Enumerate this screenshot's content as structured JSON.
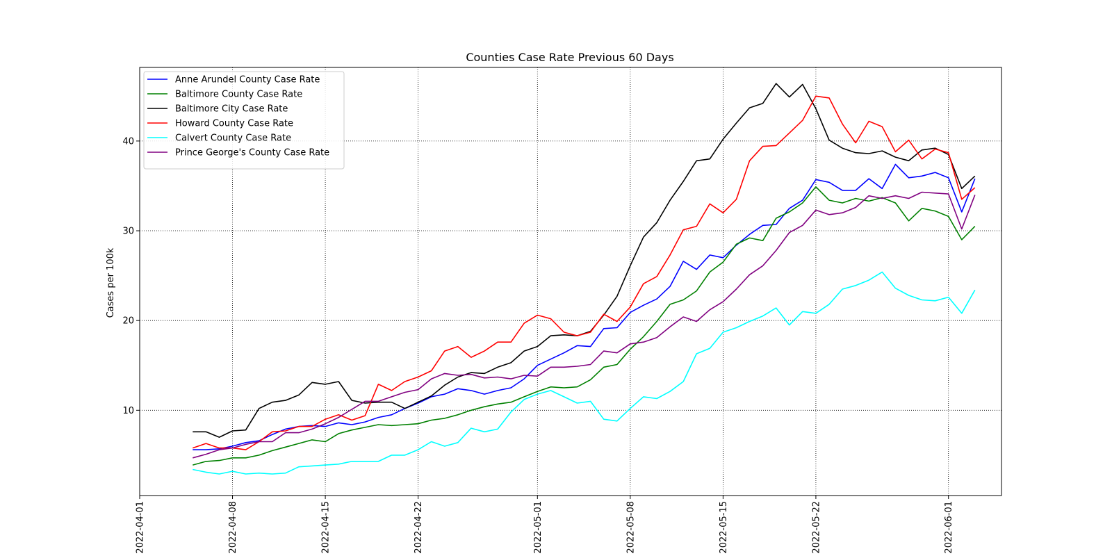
{
  "chart_data": {
    "type": "line",
    "title": "Counties Case Rate Previous 60 Days",
    "xlabel": "",
    "ylabel": "Cases per 100k",
    "grid": true,
    "legend_position": "top-left",
    "x_start_date": "2022-04-05",
    "x_end_date": "2022-06-02",
    "xlim": [
      "2022-04-01",
      "2022-06-05"
    ],
    "ylim": [
      0.5,
      48.2
    ],
    "x_ticks": [
      "2022-04-01",
      "2022-04-08",
      "2022-04-15",
      "2022-04-22",
      "2022-05-01",
      "2022-05-08",
      "2022-05-15",
      "2022-05-22",
      "2022-06-01"
    ],
    "y_ticks": [
      10,
      20,
      30,
      40
    ],
    "series": [
      {
        "name": "Anne Arundel County Case Rate",
        "color": "#0000ff",
        "values": [
          5.6,
          5.6,
          5.7,
          6.0,
          6.4,
          6.6,
          7.3,
          7.9,
          8.2,
          8.3,
          8.2,
          8.6,
          8.4,
          8.7,
          9.2,
          9.5,
          10.2,
          10.8,
          11.5,
          11.8,
          12.4,
          12.2,
          11.8,
          12.2,
          12.5,
          13.5,
          15.0,
          15.7,
          16.4,
          17.2,
          17.1,
          19.1,
          19.2,
          20.9,
          21.7,
          22.4,
          23.8,
          26.6,
          25.7,
          27.3,
          27.0,
          28.4,
          29.6,
          30.6,
          30.7,
          32.5,
          33.4,
          35.7,
          35.4,
          34.5,
          34.5,
          35.8,
          34.7,
          37.4,
          35.9,
          36.1,
          36.5,
          35.9,
          32.1,
          35.8
        ]
      },
      {
        "name": "Baltimore County Case Rate",
        "color": "#008000",
        "values": [
          3.9,
          4.3,
          4.4,
          4.7,
          4.7,
          5.0,
          5.5,
          5.9,
          6.3,
          6.7,
          6.5,
          7.4,
          7.8,
          8.1,
          8.4,
          8.3,
          8.4,
          8.5,
          8.9,
          9.1,
          9.5,
          10.0,
          10.4,
          10.7,
          10.9,
          11.5,
          12.1,
          12.6,
          12.5,
          12.6,
          13.4,
          14.8,
          15.1,
          16.8,
          18.2,
          19.9,
          21.8,
          22.3,
          23.3,
          25.4,
          26.5,
          28.5,
          29.2,
          28.9,
          31.4,
          32.1,
          33.1,
          34.9,
          33.4,
          33.1,
          33.6,
          33.3,
          33.7,
          33.1,
          31.1,
          32.5,
          32.2,
          31.6,
          29.0,
          30.5
        ]
      },
      {
        "name": "Baltimore City Case Rate",
        "color": "#000000",
        "values": [
          7.6,
          7.6,
          7.0,
          7.7,
          7.8,
          10.2,
          10.9,
          11.1,
          11.7,
          13.1,
          12.9,
          13.2,
          11.1,
          10.8,
          10.9,
          10.9,
          10.2,
          10.9,
          11.6,
          12.8,
          13.7,
          14.2,
          14.1,
          14.8,
          15.3,
          16.6,
          17.1,
          18.3,
          18.4,
          18.3,
          18.8,
          20.6,
          22.7,
          26.1,
          29.3,
          30.9,
          33.4,
          35.5,
          37.8,
          38.0,
          40.2,
          42.0,
          43.7,
          44.2,
          46.4,
          44.9,
          46.3,
          43.6,
          40.1,
          39.2,
          38.7,
          38.6,
          38.9,
          38.2,
          37.8,
          39.0,
          39.2,
          38.5,
          34.7,
          36.1
        ]
      },
      {
        "name": "Howard County Case Rate",
        "color": "#ff0000",
        "values": [
          5.8,
          6.3,
          5.8,
          5.8,
          5.6,
          6.5,
          7.6,
          7.7,
          8.2,
          8.2,
          9.0,
          9.5,
          8.9,
          9.4,
          12.9,
          12.2,
          13.2,
          13.7,
          14.4,
          16.6,
          17.1,
          15.9,
          16.6,
          17.6,
          17.6,
          19.7,
          20.6,
          20.2,
          18.7,
          18.3,
          18.7,
          20.7,
          19.9,
          21.5,
          24.1,
          24.9,
          27.3,
          30.1,
          30.5,
          33.0,
          32.0,
          33.5,
          37.8,
          39.4,
          39.5,
          40.9,
          42.3,
          45.0,
          44.8,
          41.9,
          39.8,
          42.2,
          41.6,
          38.8,
          40.1,
          38.0,
          39.1,
          38.7,
          33.5,
          34.8
        ]
      },
      {
        "name": "Calvert County Case Rate",
        "color": "#00ffff",
        "values": [
          3.4,
          3.1,
          2.9,
          3.2,
          2.9,
          3.0,
          2.9,
          3.0,
          3.7,
          3.8,
          3.9,
          4.0,
          4.3,
          4.3,
          4.3,
          5.0,
          5.0,
          5.6,
          6.5,
          6.0,
          6.4,
          8.0,
          7.6,
          7.9,
          9.8,
          11.2,
          11.8,
          12.2,
          11.5,
          10.8,
          11.0,
          9.0,
          8.8,
          10.2,
          11.5,
          11.3,
          12.1,
          13.2,
          16.3,
          16.9,
          18.7,
          19.2,
          19.9,
          20.5,
          21.4,
          19.5,
          21.0,
          20.8,
          21.8,
          23.5,
          23.9,
          24.5,
          25.4,
          23.6,
          22.8,
          22.3,
          22.2,
          22.6,
          20.8,
          23.4
        ]
      },
      {
        "name": "Prince George's County Case Rate",
        "color": "#800080",
        "values": [
          4.7,
          5.1,
          5.6,
          5.8,
          6.2,
          6.5,
          6.5,
          7.5,
          7.5,
          7.9,
          8.5,
          9.2,
          10.1,
          11.0,
          11.0,
          11.5,
          12.0,
          12.3,
          13.5,
          14.1,
          13.9,
          14.0,
          13.6,
          13.7,
          13.5,
          13.9,
          13.8,
          14.8,
          14.8,
          14.9,
          15.1,
          16.6,
          16.4,
          17.4,
          17.6,
          18.1,
          19.3,
          20.4,
          19.9,
          21.2,
          22.1,
          23.5,
          25.1,
          26.1,
          27.8,
          29.8,
          30.6,
          32.3,
          31.8,
          32.0,
          32.6,
          33.9,
          33.6,
          33.9,
          33.6,
          34.3,
          34.2,
          34.1,
          30.2,
          34.0
        ]
      }
    ]
  }
}
